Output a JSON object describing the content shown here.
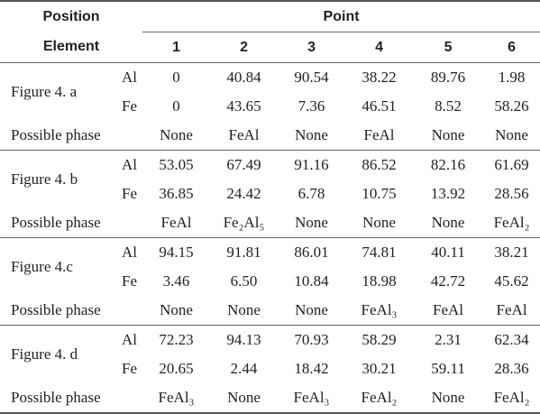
{
  "header": {
    "position": "Position",
    "element": "Element",
    "point": "Point",
    "points": [
      "1",
      "2",
      "3",
      "4",
      "5",
      "6"
    ]
  },
  "groups": [
    {
      "figure": "Figure 4. a",
      "rows": [
        {
          "element": "Al",
          "values": [
            "0",
            "40.84",
            "90.54",
            "38.22",
            "89.76",
            "1.98"
          ]
        },
        {
          "element": "Fe",
          "values": [
            "0",
            "43.65",
            "7.36",
            "46.51",
            "8.52",
            "58.26"
          ]
        }
      ],
      "phase_label": "Possible phase",
      "phases": [
        "None",
        "FeAl",
        "None",
        "FeAl",
        "None",
        "None"
      ]
    },
    {
      "figure": "Figure 4. b",
      "rows": [
        {
          "element": "Al",
          "values": [
            "53.05",
            "67.49",
            "91.16",
            "86.52",
            "82.16",
            "61.69"
          ]
        },
        {
          "element": "Fe",
          "values": [
            "36.85",
            "24.42",
            "6.78",
            "10.75",
            "13.92",
            "28.56"
          ]
        }
      ],
      "phase_label": "Possible phase",
      "phases": [
        "FeAl",
        "Fe₂Al₅",
        "None",
        "None",
        "None",
        "FeAl₂"
      ]
    },
    {
      "figure": "Figure 4.c",
      "rows": [
        {
          "element": "Al",
          "values": [
            "94.15",
            "91.81",
            "86.01",
            "74.81",
            "40.11",
            "38.21"
          ]
        },
        {
          "element": "Fe",
          "values": [
            "3.46",
            "6.50",
            "10.84",
            "18.98",
            "42.72",
            "45.62"
          ]
        }
      ],
      "phase_label": "Possible phase",
      "phases": [
        "None",
        "None",
        "None",
        "FeAl₃",
        "FeAl",
        "FeAl"
      ]
    },
    {
      "figure": "Figure 4. d",
      "rows": [
        {
          "element": "Al",
          "values": [
            "72.23",
            "94.13",
            "70.93",
            "58.29",
            "2.31",
            "62.34"
          ]
        },
        {
          "element": "Fe",
          "values": [
            "20.65",
            "2.44",
            "18.42",
            "30.21",
            "59.11",
            "28.36"
          ]
        }
      ],
      "phase_label": "Possible phase",
      "phases": [
        "FeAl₃",
        "None",
        "FeAl₃",
        "FeAl₂",
        "None",
        "FeAl₂"
      ]
    }
  ]
}
